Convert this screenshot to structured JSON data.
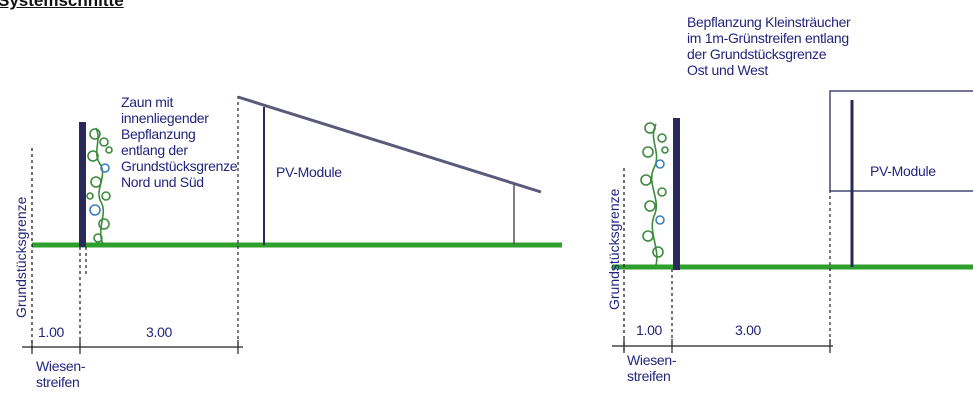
{
  "title": "Systemschnitte",
  "left_section": {
    "boundary_label": "Grundstücksgrenze",
    "fence_note": "Zaun mit\ninnenliegender\nBepflanzung\nentlang der\nGrundstücksgrenze\nNord und Süd",
    "module_label": "PV-Module",
    "dim_strip": "1.00",
    "dim_spacing": "3.00",
    "strip_label": "Wiesen-\nstreifen"
  },
  "right_section": {
    "boundary_label": "Grundstücksgrenze",
    "planting_note": "Bepflanzung Kleinsträucher\nim 1m-Grünstreifen entlang\nder Grundstücksgrenze\nOst und West",
    "module_label": "PV-Module",
    "dim_strip": "1.00",
    "dim_spacing": "3.00",
    "strip_label": "Wiesen-\nstreifen"
  },
  "colors": {
    "ground": "#2e9e2e",
    "line": "#2a2a5a",
    "text": "#24247e",
    "foliage": "#3d8a3d",
    "foliage_accent": "#3a7fc0"
  }
}
